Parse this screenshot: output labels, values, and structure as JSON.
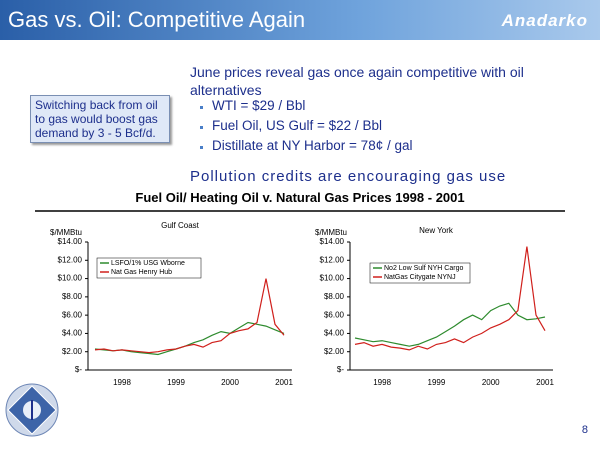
{
  "header": {
    "title": "Gas vs. Oil: Competitive Again",
    "logo": "Anadarko"
  },
  "callout": "Switching back from oil to gas would boost gas demand by 3 - 5 Bcf/d.",
  "headline": "June prices reveal gas once again competitive with oil alternatives",
  "bullets": [
    "WTI = $29 / Bbl",
    "Fuel Oil, US Gulf = $22 / Bbl",
    "Distillate at NY Harbor = 78¢ / gal"
  ],
  "subheadline": "Pollution credits are encouraging gas use",
  "section_title": "Fuel Oil/ Heating Oil v. Natural Gas Prices 1998 - 2001",
  "page_number": "8",
  "chart_data": [
    {
      "type": "line",
      "title": "Gulf Coast",
      "y_label": "$/MMBtu",
      "categories": [
        null,
        null,
        null,
        "1998",
        null,
        null,
        null,
        null,
        null,
        "1999",
        null,
        null,
        null,
        null,
        null,
        "2000",
        null,
        null,
        null,
        null,
        null,
        "2001"
      ],
      "series": [
        {
          "name": "LSFO/1% USG Wborne",
          "color": "#2e8b2e",
          "values": [
            2.3,
            2.2,
            2.1,
            2.2,
            2.0,
            1.9,
            1.8,
            1.7,
            2.0,
            2.3,
            2.6,
            3.0,
            3.3,
            3.8,
            4.2,
            4.0,
            4.6,
            5.2,
            5.0,
            4.8,
            4.4,
            4.0
          ]
        },
        {
          "name": "Nat Gas Henry Hub",
          "color": "#d0201c",
          "values": [
            2.2,
            2.3,
            2.1,
            2.2,
            2.1,
            2.0,
            1.9,
            2.0,
            2.2,
            2.3,
            2.6,
            2.8,
            2.5,
            3.0,
            3.2,
            4.0,
            4.3,
            4.5,
            5.2,
            10.0,
            5.0,
            3.8
          ]
        }
      ],
      "ylim": [
        0,
        14
      ],
      "yticks": [
        {
          "value": 0,
          "label": "$-"
        },
        {
          "value": 2,
          "label": "$2.00"
        },
        {
          "value": 4,
          "label": "$4.00"
        },
        {
          "value": 6,
          "label": "$6.00"
        },
        {
          "value": 8,
          "label": "$8.00"
        },
        {
          "value": 10,
          "label": "$10.00"
        },
        {
          "value": 12,
          "label": "$12.00"
        },
        {
          "value": 14,
          "label": "$14.00"
        }
      ],
      "grid": false
    },
    {
      "type": "line",
      "title": "New York",
      "y_label": "$/MMBtu",
      "categories": [
        null,
        null,
        null,
        "1998",
        null,
        null,
        null,
        null,
        null,
        "1999",
        null,
        null,
        null,
        null,
        null,
        "2000",
        null,
        null,
        null,
        null,
        null,
        "2001"
      ],
      "series": [
        {
          "name": "No2 Low Sulf NYH Cargo",
          "color": "#2e8b2e",
          "values": [
            3.5,
            3.3,
            3.1,
            3.2,
            3.0,
            2.8,
            2.6,
            2.8,
            3.2,
            3.6,
            4.2,
            4.8,
            5.5,
            6.0,
            5.5,
            6.5,
            7.0,
            7.3,
            6.0,
            5.5,
            5.6,
            5.8
          ]
        },
        {
          "name": "NatGas Citygate NYNJ",
          "color": "#d0201c",
          "values": [
            2.8,
            3.0,
            2.6,
            2.8,
            2.5,
            2.4,
            2.2,
            2.6,
            2.3,
            2.8,
            3.0,
            3.4,
            3.0,
            3.6,
            4.0,
            4.6,
            5.0,
            5.5,
            6.5,
            13.5,
            6.0,
            4.3
          ]
        }
      ],
      "ylim": [
        0,
        14
      ],
      "yticks": [
        {
          "value": 0,
          "label": "$-"
        },
        {
          "value": 2,
          "label": "$2.00"
        },
        {
          "value": 4,
          "label": "$4.00"
        },
        {
          "value": 6,
          "label": "$6.00"
        },
        {
          "value": 8,
          "label": "$8.00"
        },
        {
          "value": 10,
          "label": "$10.00"
        },
        {
          "value": 12,
          "label": "$12.00"
        },
        {
          "value": 14,
          "label": "$14.00"
        }
      ],
      "grid": false
    }
  ]
}
